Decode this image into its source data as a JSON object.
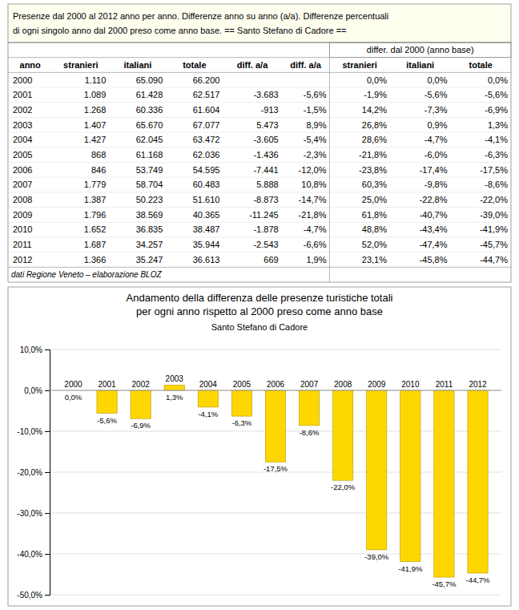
{
  "table": {
    "title": [
      "Presenze dal 2000 al 2012 anno per anno. Differenze anno su anno (a/a). Differenze percentuali",
      "di ogni singolo anno dal 2000 preso come anno base.    == Santo Stefano di Cadore =="
    ],
    "subheader": "differ. dal 2000 (anno base)",
    "header": [
      "anno",
      "stranieri",
      "italiani",
      "totale",
      "diff. a/a",
      "diff. a/a",
      "stranieri",
      "italiani",
      "totale"
    ],
    "rows": [
      [
        "2000",
        "1.110",
        "65.090",
        "66.200",
        null,
        null,
        "0,0%",
        "0,0%",
        "0,0%"
      ],
      [
        "2001",
        "1.089",
        "61.428",
        "62.517",
        "-3.683",
        "-5,6%",
        "-1,9%",
        "-5,6%",
        "-5,6%"
      ],
      [
        "2002",
        "1.268",
        "60.336",
        "61.604",
        "-913",
        "-1,5%",
        "14,2%",
        "-7,3%",
        "-6,9%"
      ],
      [
        "2003",
        "1.407",
        "65.670",
        "67.077",
        "5.473",
        "8,9%",
        "26,8%",
        "0,9%",
        "1,3%"
      ],
      [
        "2004",
        "1.427",
        "62.045",
        "63.472",
        "-3.605",
        "-5,4%",
        "28,6%",
        "-4,7%",
        "-4,1%"
      ],
      [
        "2005",
        "868",
        "61.168",
        "62.036",
        "-1.436",
        "-2,3%",
        "-21,8%",
        "-6,0%",
        "-6,3%"
      ],
      [
        "2006",
        "846",
        "53.749",
        "54.595",
        "-7.441",
        "-12,0%",
        "-23,8%",
        "-17,4%",
        "-17,5%"
      ],
      [
        "2007",
        "1.779",
        "58.704",
        "60.483",
        "5.888",
        "10,8%",
        "60,3%",
        "-9,8%",
        "-8,6%"
      ],
      [
        "2008",
        "1.387",
        "50.223",
        "51.610",
        "-8.873",
        "-14,7%",
        "25,0%",
        "-22,8%",
        "-22,0%"
      ],
      [
        "2009",
        "1.796",
        "38.569",
        "40.365",
        "-11.245",
        "-21,8%",
        "61,8%",
        "-40,7%",
        "-39,0%"
      ],
      [
        "2010",
        "1.652",
        "36.835",
        "38.487",
        "-1.878",
        "-4,7%",
        "48,8%",
        "-43,4%",
        "-41,9%"
      ],
      [
        "2011",
        "1.687",
        "34.257",
        "35.944",
        "-2.543",
        "-6,6%",
        "52,0%",
        "-47,4%",
        "-45,7%"
      ],
      [
        "2012",
        "1.366",
        "35.247",
        "36.613",
        "669",
        "1,9%",
        "23,1%",
        "-45,8%",
        "-44,7%"
      ]
    ],
    "footer": "dati Regione Veneto – elaborazione BLOZ"
  },
  "chart_data": {
    "type": "bar",
    "title": [
      "Andamento della differenza delle presenze turistiche totali",
      "per ogni anno rispetto al 2000 preso come anno base"
    ],
    "subtitle": "Santo Stefano di Cadore",
    "categories": [
      "2000",
      "2001",
      "2002",
      "2003",
      "2004",
      "2005",
      "2006",
      "2007",
      "2008",
      "2009",
      "2010",
      "2011",
      "2012"
    ],
    "values": [
      0.0,
      -5.6,
      -6.9,
      1.3,
      -4.1,
      -6.3,
      -17.5,
      -8.6,
      -22.0,
      -39.0,
      -41.9,
      -45.7,
      -44.7
    ],
    "value_labels": [
      "0,0%",
      "-5,6%",
      "-6,9%",
      "1,3%",
      "-4,1%",
      "-6,3%",
      "-17,5%",
      "-8,6%",
      "-22,0%",
      "-39,0%",
      "-41,9%",
      "-45,7%",
      "-44,7%"
    ],
    "data_labels": true,
    "color": "#FFD700",
    "ylim": [
      -50,
      10
    ],
    "yticks": [
      {
        "value": 10,
        "label": "10,0%"
      },
      {
        "value": 0,
        "label": "0,0%"
      },
      {
        "value": -10,
        "label": "-10,0%"
      },
      {
        "value": -20,
        "label": "-20,0%"
      },
      {
        "value": -30,
        "label": "-30,0%"
      },
      {
        "value": -40,
        "label": "-40,0%"
      },
      {
        "value": -50,
        "label": "-50,0%"
      }
    ],
    "grid": true
  }
}
